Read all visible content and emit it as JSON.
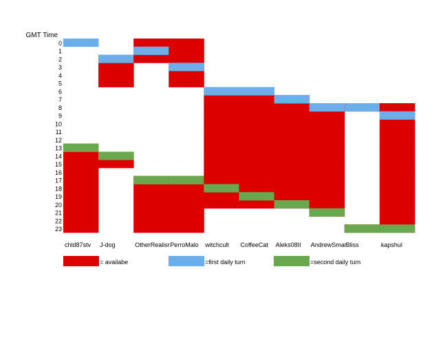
{
  "colors": {
    "available": "#dd0000",
    "first_turn": "#6aaeea",
    "second_turn": "#6aa84f"
  },
  "chart_data": {
    "type": "heatmap",
    "ylabel": "GMT Time",
    "hours": [
      "0",
      "1",
      "2",
      "3",
      "4",
      "5",
      "6",
      "7",
      "8",
      "9",
      "10",
      "11",
      "12",
      "13",
      "14",
      "15",
      "16",
      "17",
      "18",
      "19",
      "20",
      "21",
      "22",
      "23"
    ],
    "players": [
      {
        "name": "chld87stv",
        "available": [
          [
            13,
            23
          ]
        ],
        "first_turn": [
          0
        ],
        "second_turn": [
          13
        ]
      },
      {
        "name": "J-dog",
        "available": [
          [
            2,
            5
          ],
          [
            14,
            15
          ]
        ],
        "first_turn": [
          2
        ],
        "second_turn": [
          14
        ]
      },
      {
        "name": "OtherRealisr",
        "available": [
          [
            0,
            2
          ],
          [
            17,
            23
          ]
        ],
        "first_turn": [
          1
        ],
        "second_turn": [
          17
        ]
      },
      {
        "name": "PerroMalo",
        "available": [
          [
            0,
            5
          ],
          [
            17,
            23
          ]
        ],
        "first_turn": [
          3
        ],
        "second_turn": [
          17
        ]
      },
      {
        "name": "witchcult",
        "available": [
          [
            6,
            20
          ]
        ],
        "first_turn": [
          6
        ],
        "second_turn": [
          18
        ]
      },
      {
        "name": "CoffeeCat",
        "available": [
          [
            6,
            20
          ]
        ],
        "first_turn": [
          6
        ],
        "second_turn": [
          19
        ]
      },
      {
        "name": "Aleks08II",
        "available": [
          [
            7,
            20
          ]
        ],
        "first_turn": [
          7
        ],
        "second_turn": [
          20
        ]
      },
      {
        "name": "AndrewSmar",
        "available": [
          [
            8,
            21
          ]
        ],
        "first_turn": [
          8
        ],
        "second_turn": [
          21
        ]
      },
      {
        "name": "Bliss",
        "available": [
          [
            8,
            8
          ],
          [
            23,
            23
          ]
        ],
        "first_turn": [
          8
        ],
        "second_turn": [
          23
        ]
      },
      {
        "name": "kapshul",
        "available": [
          [
            8,
            23
          ]
        ],
        "first_turn": [
          9
        ],
        "second_turn": [
          23
        ]
      }
    ]
  },
  "legend": {
    "available": "= availabe",
    "first_turn": "=first daily turn",
    "second_turn": "=second daily turn"
  }
}
